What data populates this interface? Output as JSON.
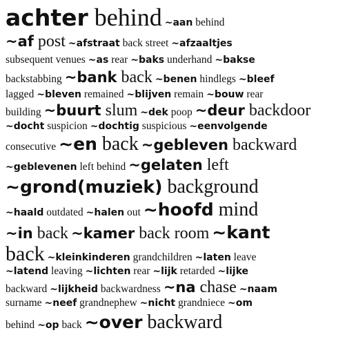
{
  "dictionary_entry": {
    "lines": [
      {
        "cls": "s4",
        "h": 42,
        "items": [
          {
            "hw": "achter",
            "gl": "behind",
            "s": "s4"
          },
          {
            "hw": "~aan",
            "gl": "behind",
            "s": "s1"
          }
        ]
      },
      {
        "cls": "s1",
        "h": 29,
        "items": [
          {
            "hw": "~af",
            "gl": "post",
            "s": "s2"
          },
          {
            "hw": "~afstraat",
            "gl": "back street",
            "s": "s1"
          },
          {
            "hw": "~afzaaltjes",
            "gl": "",
            "s": "s1"
          }
        ]
      },
      {
        "cls": "s1",
        "h": 23,
        "items": [
          {
            "hw": "",
            "gl": "subsequent venues",
            "s": "s1"
          },
          {
            "hw": "~as",
            "gl": "rear",
            "s": "s1"
          },
          {
            "hw": "~baks",
            "gl": "underhand",
            "s": "s1"
          },
          {
            "hw": "~bakse",
            "gl": "",
            "s": "s1"
          }
        ]
      },
      {
        "cls": "s1",
        "h": 28,
        "items": [
          {
            "hw": "",
            "gl": "backstabbing",
            "s": "s1"
          },
          {
            "hw": "~bank",
            "gl": "back",
            "s": "s2"
          },
          {
            "hw": "~benen",
            "gl": "hindlegs",
            "s": "s1"
          },
          {
            "hw": "~bleef",
            "gl": "",
            "s": "s1"
          }
        ]
      },
      {
        "cls": "s1",
        "h": 22,
        "items": [
          {
            "hw": "",
            "gl": "lagged",
            "s": "s1"
          },
          {
            "hw": "~bleven",
            "gl": "remained",
            "s": "s1"
          },
          {
            "hw": "~blijven",
            "gl": "remain",
            "s": "s1"
          },
          {
            "hw": "~bouw",
            "gl": "rear",
            "s": "s1"
          }
        ]
      },
      {
        "cls": "s1",
        "h": 24,
        "items": [
          {
            "hw": "",
            "gl": "building",
            "s": "s1"
          },
          {
            "hw": "~buurt",
            "gl": "slum",
            "s": "s2"
          },
          {
            "hw": "~dek",
            "gl": "poop",
            "s": "s1"
          },
          {
            "hw": "~deur",
            "gl": "backdoor",
            "s": "s2"
          }
        ]
      },
      {
        "cls": "s1",
        "h": 22,
        "items": [
          {
            "hw": "~docht",
            "gl": "suspicion",
            "s": "s1"
          },
          {
            "hw": "~dochtig",
            "gl": "suspicious",
            "s": "s1"
          },
          {
            "hw": "~eenvolgende",
            "gl": "",
            "s": "s1"
          }
        ]
      },
      {
        "cls": "s1",
        "h": 30,
        "items": [
          {
            "hw": "",
            "gl": "consecutive",
            "s": "s1"
          },
          {
            "hw": "~en",
            "gl": "back",
            "s": "s3"
          },
          {
            "hw": "~gebleven",
            "gl": "backward",
            "s": "s2"
          }
        ]
      },
      {
        "cls": "s1",
        "h": 30,
        "items": [
          {
            "hw": "~geblevenen",
            "gl": "left behind",
            "s": "s1"
          },
          {
            "hw": "~gelaten",
            "gl": "left",
            "s": "s2"
          }
        ]
      },
      {
        "cls": "s3",
        "h": 34,
        "items": [
          {
            "hw": "~grond(muziek)",
            "gl": "background",
            "s": "s3"
          }
        ]
      },
      {
        "cls": "s1",
        "h": 32,
        "items": [
          {
            "hw": "~haald",
            "gl": "outdated",
            "s": "s1"
          },
          {
            "hw": "~halen",
            "gl": "out",
            "s": "s1"
          },
          {
            "hw": "~hoofd",
            "gl": "mind",
            "s": "s3"
          }
        ]
      },
      {
        "cls": "s1",
        "h": 34,
        "items": [
          {
            "hw": "~in",
            "gl": "back",
            "s": "s2"
          },
          {
            "hw": "~kamer",
            "gl": "back room",
            "s": "s2"
          },
          {
            "hw": "~kant",
            "gl": "",
            "s": "s3"
          }
        ]
      },
      {
        "cls": "s1",
        "h": 28,
        "items": [
          {
            "hw": "",
            "gl": "back",
            "s": "s5"
          },
          {
            "hw": "~kleinkinderen",
            "gl": "grandchildren",
            "s": "s1"
          },
          {
            "hw": "~laten",
            "gl": "leave",
            "s": "s1"
          }
        ]
      },
      {
        "cls": "s1",
        "h": 22,
        "items": [
          {
            "hw": "~latend",
            "gl": "leaving",
            "s": "s1"
          },
          {
            "hw": "~lichten",
            "gl": "rear",
            "s": "s1"
          },
          {
            "hw": "~lijk",
            "gl": "retarded",
            "s": "s1"
          },
          {
            "hw": "~lijke",
            "gl": "",
            "s": "s1"
          }
        ]
      },
      {
        "cls": "s1",
        "h": 24,
        "items": [
          {
            "hw": "",
            "gl": "backward",
            "s": "s1"
          },
          {
            "hw": "~lijkheid",
            "gl": "backwardness",
            "s": "s1"
          },
          {
            "hw": "~na",
            "gl": "chase",
            "s": "s2"
          },
          {
            "hw": "~naam",
            "gl": "",
            "s": "s1"
          }
        ]
      },
      {
        "cls": "s1",
        "h": 22,
        "items": [
          {
            "hw": "",
            "gl": "surname",
            "s": "s1"
          },
          {
            "hw": "~neef",
            "gl": "grandnephew",
            "s": "s1"
          },
          {
            "hw": "~nicht",
            "gl": "grandniece",
            "s": "s1"
          },
          {
            "hw": "~om",
            "gl": "",
            "s": "s1"
          }
        ]
      },
      {
        "cls": "s1",
        "h": 34,
        "items": [
          {
            "hw": "",
            "gl": "behind",
            "s": "s1"
          },
          {
            "hw": "~op",
            "gl": "back",
            "s": "s1"
          },
          {
            "hw": "~over",
            "gl": "backward",
            "s": "s3"
          }
        ]
      }
    ]
  }
}
